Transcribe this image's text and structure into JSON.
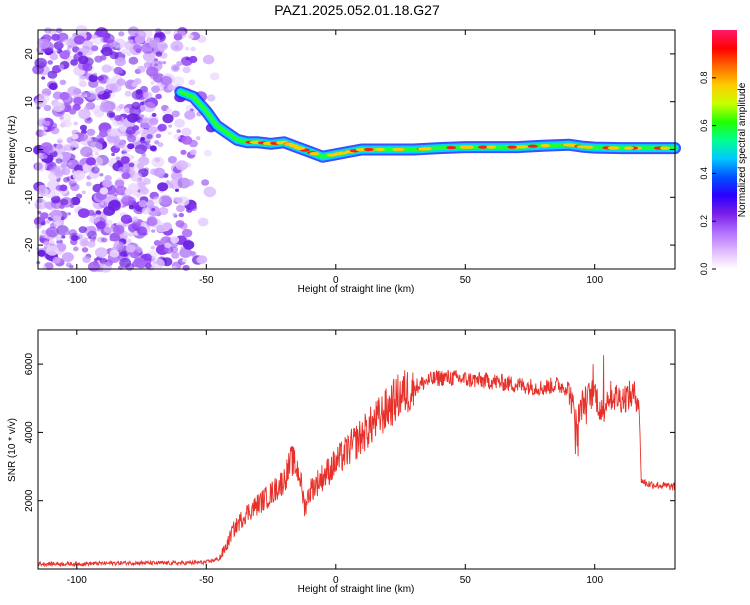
{
  "title": "PAZ1.2025.052.01.18.G27",
  "chart_data": [
    {
      "type": "heatmap",
      "xlabel": "Height of straight line (km)",
      "ylabel": "Frequency (Hz)",
      "xlim": [
        -115,
        131
      ],
      "ylim": [
        -25,
        25
      ],
      "x_ticks": [
        -100,
        -50,
        0,
        50,
        100
      ],
      "y_ticks": [
        -20,
        -10,
        0,
        10,
        20
      ],
      "colorbar": {
        "label": "Normalized spectral amplitude",
        "range": [
          0,
          1
        ],
        "ticks": [
          0.0,
          0.2,
          0.4,
          0.6,
          0.8
        ],
        "colors": [
          "#ffffff",
          "#e0b8ff",
          "#b070ff",
          "#7a1fe8",
          "#2a00ff",
          "#0050ff",
          "#00c8ff",
          "#00ff90",
          "#22ff00",
          "#c8ff00",
          "#ffcc00",
          "#ff6a00",
          "#ff0000",
          "#ff1a6a"
        ]
      },
      "ridge": {
        "x": [
          -60,
          -55,
          -50,
          -46,
          -42,
          -38,
          -34,
          -30,
          -25,
          -20,
          -15,
          -10,
          -5,
          0,
          5,
          10,
          20,
          30,
          40,
          50,
          60,
          70,
          80,
          90,
          95,
          100,
          110,
          120,
          131
        ],
        "freq": [
          12,
          11,
          8,
          5,
          3.5,
          2,
          1.5,
          1.5,
          1.2,
          1.5,
          0.5,
          -0.5,
          -1.5,
          -1,
          -0.5,
          0,
          0,
          0,
          0.3,
          0.5,
          0.5,
          0.5,
          0.8,
          1,
          0.6,
          0.4,
          0.3,
          0.3,
          0.3
        ]
      },
      "noise_region_x": [
        -115,
        -45
      ],
      "grid": false
    },
    {
      "type": "line",
      "xlabel": "Height of straight line (km)",
      "ylabel": "SNR (10 * v/v)",
      "xlim": [
        -115,
        131
      ],
      "ylim": [
        0,
        7000
      ],
      "x_ticks": [
        -100,
        -50,
        0,
        50,
        100
      ],
      "y_ticks": [
        2000,
        4000,
        6000
      ],
      "color": "#e8302a",
      "grid": false,
      "series": [
        {
          "x": [
            -115,
            -100,
            -80,
            -60,
            -50,
            -45,
            -42,
            -40,
            -35,
            -30,
            -25,
            -20,
            -17,
            -14,
            -12,
            -10,
            -5,
            0,
            5,
            10,
            15,
            20,
            25,
            30,
            35,
            40,
            45,
            50,
            60,
            70,
            80,
            85,
            90,
            93,
            95,
            97,
            100,
            103,
            105,
            110,
            115,
            117,
            118,
            120,
            125,
            131
          ],
          "values": [
            150,
            150,
            180,
            170,
            200,
            300,
            700,
            1100,
            1600,
            1900,
            2200,
            2600,
            3200,
            2800,
            1800,
            2300,
            2700,
            3100,
            3500,
            3900,
            4300,
            4700,
            5100,
            5300,
            5500,
            5600,
            5600,
            5550,
            5500,
            5400,
            5300,
            5400,
            5300,
            4200,
            4800,
            5000,
            5200,
            4500,
            5100,
            5000,
            5100,
            5000,
            2600,
            2500,
            2450,
            2400
          ]
        }
      ]
    }
  ]
}
